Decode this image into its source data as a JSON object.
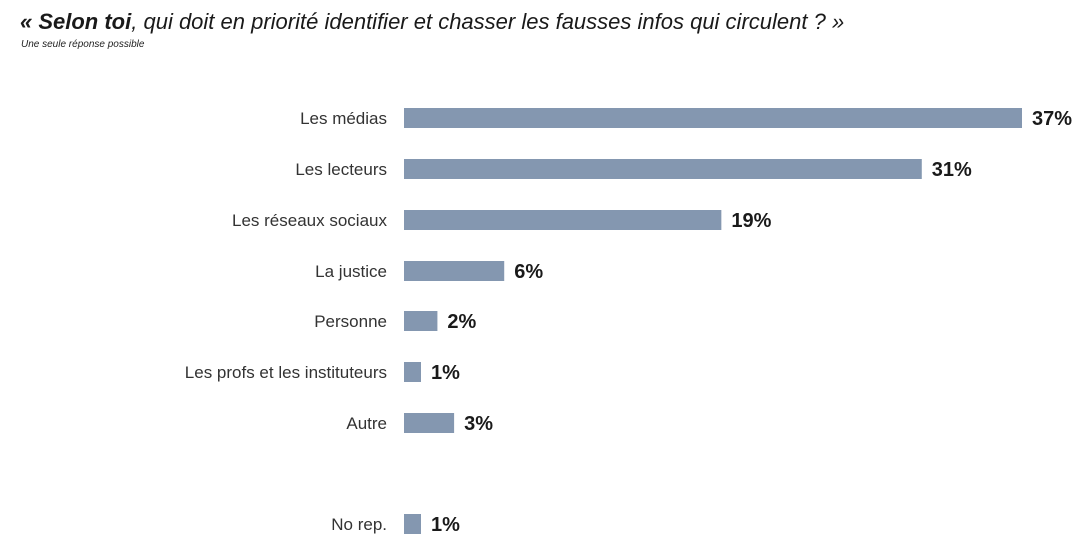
{
  "title": {
    "strong": "« Selon toi",
    "rest": ", qui doit en priorité identifier et chasser les fausses infos qui circulent ? »"
  },
  "subtitle": "Une seule réponse possible",
  "colors": {
    "bar": "#8497b0",
    "label": "#333333",
    "value": "#1a1a1a"
  },
  "chart_data": {
    "type": "bar",
    "orientation": "horizontal",
    "categories": [
      "Les médias",
      "Les lecteurs",
      "Les réseaux sociaux",
      "La justice",
      "Personne",
      "Les profs et les instituteurs",
      "Autre",
      "No rep."
    ],
    "values": [
      37,
      31,
      19,
      6,
      2,
      1,
      3,
      1
    ],
    "value_labels": [
      "37%",
      "31%",
      "19%",
      "6%",
      "2%",
      "1%",
      "3%",
      "1%"
    ],
    "unit": "%",
    "xlim": [
      0,
      37
    ],
    "grid": false,
    "legend": "none"
  }
}
